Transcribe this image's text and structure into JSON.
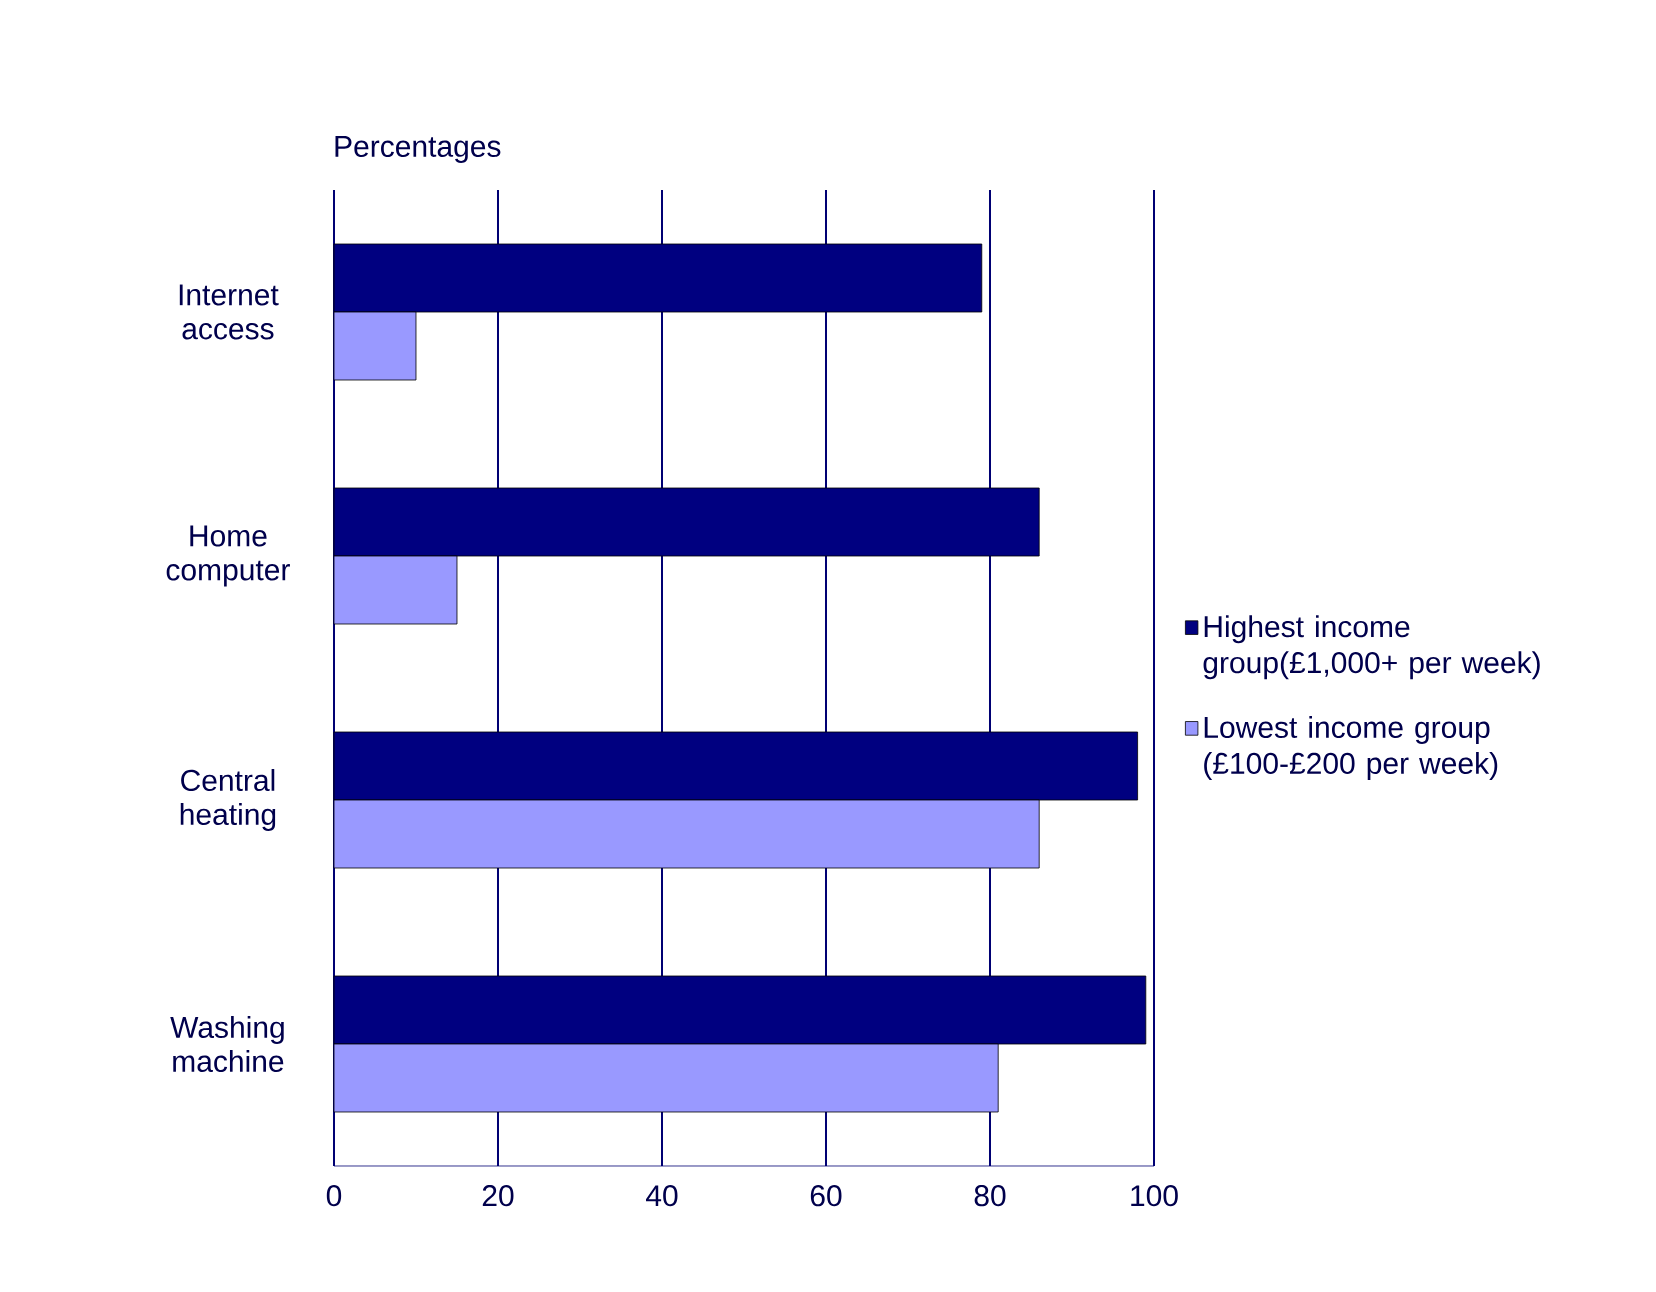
{
  "chart_data": {
    "type": "bar",
    "orientation": "horizontal",
    "xlabel": "Percentages",
    "categories": [
      "Internet access",
      "Home computer",
      "Central heating",
      "Washing machine"
    ],
    "series": [
      {
        "name": "Highest income group(£1,000+ per week)",
        "color": "#000080",
        "values": [
          79,
          86,
          98,
          99
        ]
      },
      {
        "name": "Lowest income group (£100-£200 per week)",
        "color": "#9999ff",
        "values": [
          10,
          15,
          86,
          81
        ]
      }
    ],
    "xlim": [
      0,
      100
    ],
    "xticks": [
      0,
      20,
      40,
      60,
      80,
      100
    ],
    "grid": "x",
    "legend": "right"
  }
}
